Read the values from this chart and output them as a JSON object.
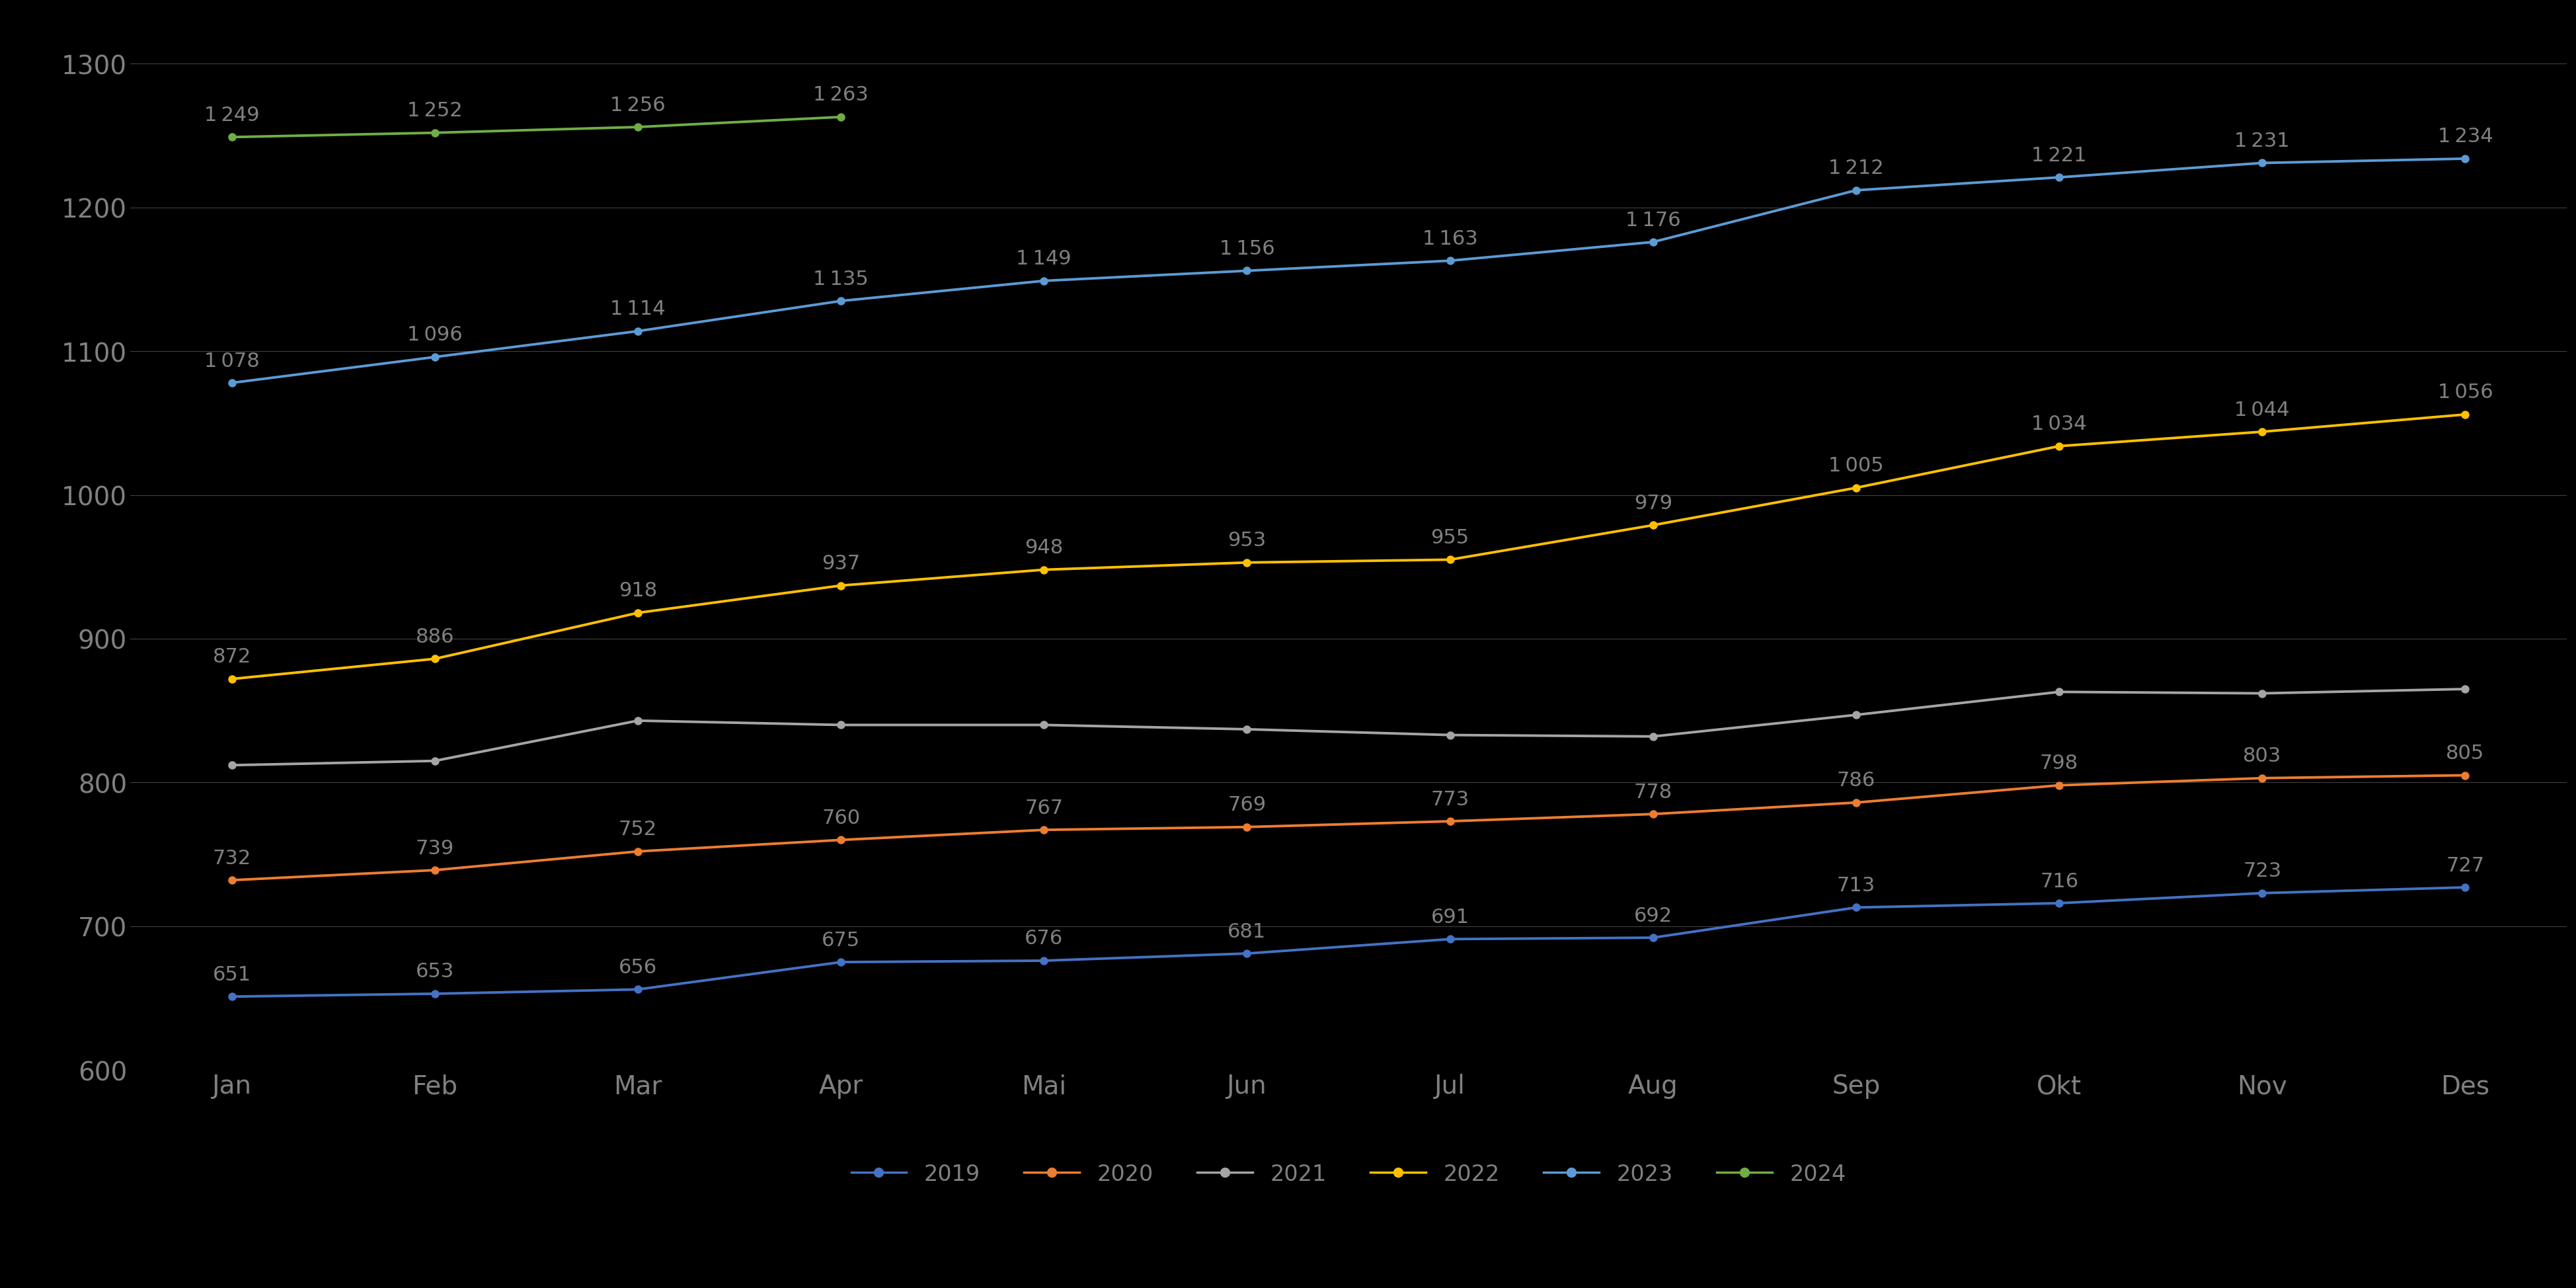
{
  "months": [
    "Jan",
    "Feb",
    "Mar",
    "Apr",
    "Mai",
    "Jun",
    "Jul",
    "Aug",
    "Sep",
    "Okt",
    "Nov",
    "Des"
  ],
  "series": {
    "2019": {
      "values": [
        651,
        653,
        656,
        675,
        676,
        681,
        691,
        692,
        713,
        716,
        723,
        727
      ],
      "color": "#4472C4"
    },
    "2020": {
      "values": [
        732,
        739,
        752,
        760,
        767,
        769,
        773,
        778,
        786,
        798,
        803,
        805
      ],
      "color": "#ED7D31"
    },
    "2021": {
      "values": [
        812,
        815,
        843,
        840,
        840,
        837,
        833,
        832,
        847,
        863,
        862,
        865
      ],
      "color": "#A5A5A5",
      "show_labels": false
    },
    "2022": {
      "values": [
        872,
        886,
        918,
        937,
        948,
        953,
        955,
        979,
        1005,
        1034,
        1044,
        1056
      ],
      "color": "#FFC000"
    },
    "2023": {
      "values": [
        1078,
        1096,
        1114,
        1135,
        1149,
        1156,
        1163,
        1176,
        1212,
        1221,
        1231,
        1234
      ],
      "color": "#5B9BD5"
    },
    "2024": {
      "values": [
        1249,
        1252,
        1256,
        1263,
        null,
        null,
        null,
        null,
        null,
        null,
        null,
        null
      ],
      "color": "#70AD47"
    }
  },
  "ylim": [
    600,
    1320
  ],
  "yticks": [
    600,
    700,
    800,
    900,
    1000,
    1100,
    1200,
    1300
  ],
  "background_color": "#000000",
  "text_color": "#808080",
  "grid_color": "#404040",
  "label_color": "#808080",
  "line_width": 2.8,
  "marker_size": 8,
  "fontsize_ticks": 28,
  "fontsize_legend": 24,
  "fontsize_data_labels": 22
}
